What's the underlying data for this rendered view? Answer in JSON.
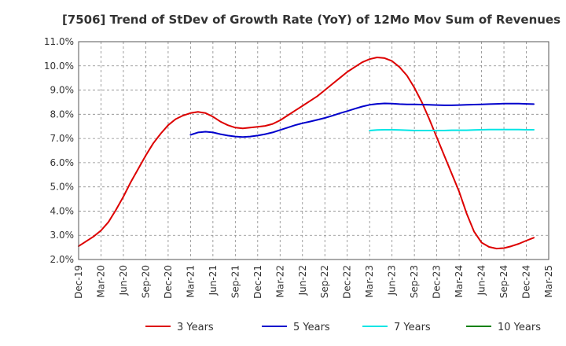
{
  "chart_data": {
    "type": "line",
    "title": "[7506]  Trend of StDev of Growth Rate (YoY) of 12Mo Mov Sum of Revenues",
    "xlabel": "",
    "ylabel": "",
    "ylim": [
      2.0,
      11.0
    ],
    "y_ticks": [
      2.0,
      3.0,
      4.0,
      5.0,
      6.0,
      7.0,
      8.0,
      9.0,
      10.0,
      11.0
    ],
    "y_tick_labels": [
      "2.0%",
      "3.0%",
      "4.0%",
      "5.0%",
      "6.0%",
      "7.0%",
      "8.0%",
      "9.0%",
      "10.0%",
      "11.0%"
    ],
    "x_tick_labels": [
      "Dec-19",
      "Mar-20",
      "Jun-20",
      "Sep-20",
      "Dec-20",
      "Mar-21",
      "Jun-21",
      "Sep-21",
      "Dec-21",
      "Mar-22",
      "Jun-22",
      "Sep-22",
      "Dec-22",
      "Mar-23",
      "Jun-23",
      "Sep-23",
      "Dec-23",
      "Mar-24",
      "Jun-24",
      "Sep-24",
      "Dec-24",
      "Mar-25"
    ],
    "x_unit": "months since Dec-19",
    "xlim": [
      0,
      63
    ],
    "grid": true,
    "legend_position": "bottom",
    "series": [
      {
        "name": "3 Years",
        "color": "#dd0000",
        "points": [
          [
            0,
            2.55
          ],
          [
            1,
            2.75
          ],
          [
            2,
            2.95
          ],
          [
            3,
            3.2
          ],
          [
            4,
            3.55
          ],
          [
            5,
            4.05
          ],
          [
            6,
            4.6
          ],
          [
            7,
            5.2
          ],
          [
            8,
            5.75
          ],
          [
            9,
            6.3
          ],
          [
            10,
            6.8
          ],
          [
            11,
            7.2
          ],
          [
            12,
            7.55
          ],
          [
            13,
            7.8
          ],
          [
            14,
            7.95
          ],
          [
            15,
            8.05
          ],
          [
            16,
            8.1
          ],
          [
            17,
            8.05
          ],
          [
            18,
            7.9
          ],
          [
            19,
            7.7
          ],
          [
            20,
            7.55
          ],
          [
            21,
            7.45
          ],
          [
            22,
            7.42
          ],
          [
            23,
            7.45
          ],
          [
            24,
            7.48
          ],
          [
            25,
            7.52
          ],
          [
            26,
            7.6
          ],
          [
            27,
            7.75
          ],
          [
            28,
            7.95
          ],
          [
            29,
            8.15
          ],
          [
            30,
            8.35
          ],
          [
            31,
            8.55
          ],
          [
            32,
            8.75
          ],
          [
            33,
            9.0
          ],
          [
            34,
            9.25
          ],
          [
            35,
            9.5
          ],
          [
            36,
            9.75
          ],
          [
            37,
            9.95
          ],
          [
            38,
            10.15
          ],
          [
            39,
            10.28
          ],
          [
            40,
            10.35
          ],
          [
            41,
            10.32
          ],
          [
            42,
            10.2
          ],
          [
            43,
            9.95
          ],
          [
            44,
            9.6
          ],
          [
            45,
            9.1
          ],
          [
            46,
            8.5
          ],
          [
            47,
            7.8
          ],
          [
            48,
            7.05
          ],
          [
            49,
            6.3
          ],
          [
            50,
            5.55
          ],
          [
            51,
            4.8
          ],
          [
            52,
            3.9
          ],
          [
            53,
            3.15
          ],
          [
            54,
            2.7
          ],
          [
            55,
            2.52
          ],
          [
            56,
            2.45
          ],
          [
            57,
            2.47
          ],
          [
            58,
            2.55
          ],
          [
            59,
            2.65
          ],
          [
            60,
            2.78
          ],
          [
            61,
            2.9
          ]
        ]
      },
      {
        "name": "5 Years",
        "color": "#0000cc",
        "points": [
          [
            15,
            7.15
          ],
          [
            16,
            7.25
          ],
          [
            17,
            7.28
          ],
          [
            18,
            7.25
          ],
          [
            19,
            7.18
          ],
          [
            20,
            7.12
          ],
          [
            21,
            7.08
          ],
          [
            22,
            7.06
          ],
          [
            23,
            7.08
          ],
          [
            24,
            7.12
          ],
          [
            25,
            7.18
          ],
          [
            26,
            7.25
          ],
          [
            27,
            7.35
          ],
          [
            28,
            7.45
          ],
          [
            29,
            7.55
          ],
          [
            30,
            7.63
          ],
          [
            31,
            7.7
          ],
          [
            32,
            7.77
          ],
          [
            33,
            7.85
          ],
          [
            34,
            7.94
          ],
          [
            35,
            8.04
          ],
          [
            36,
            8.13
          ],
          [
            37,
            8.23
          ],
          [
            38,
            8.32
          ],
          [
            39,
            8.39
          ],
          [
            40,
            8.43
          ],
          [
            41,
            8.45
          ],
          [
            42,
            8.44
          ],
          [
            43,
            8.42
          ],
          [
            44,
            8.41
          ],
          [
            45,
            8.41
          ],
          [
            46,
            8.4
          ],
          [
            47,
            8.39
          ],
          [
            48,
            8.38
          ],
          [
            49,
            8.37
          ],
          [
            50,
            8.37
          ],
          [
            51,
            8.38
          ],
          [
            52,
            8.39
          ],
          [
            53,
            8.4
          ],
          [
            54,
            8.41
          ],
          [
            55,
            8.42
          ],
          [
            56,
            8.43
          ],
          [
            57,
            8.44
          ],
          [
            58,
            8.44
          ],
          [
            59,
            8.44
          ],
          [
            60,
            8.43
          ],
          [
            61,
            8.42
          ]
        ]
      },
      {
        "name": "7 Years",
        "color": "#00e5e5",
        "points": [
          [
            39,
            7.33
          ],
          [
            40,
            7.35
          ],
          [
            41,
            7.36
          ],
          [
            42,
            7.36
          ],
          [
            43,
            7.35
          ],
          [
            44,
            7.34
          ],
          [
            45,
            7.33
          ],
          [
            46,
            7.33
          ],
          [
            47,
            7.33
          ],
          [
            48,
            7.33
          ],
          [
            49,
            7.33
          ],
          [
            50,
            7.34
          ],
          [
            51,
            7.34
          ],
          [
            52,
            7.34
          ],
          [
            53,
            7.35
          ],
          [
            54,
            7.36
          ],
          [
            55,
            7.37
          ],
          [
            56,
            7.37
          ],
          [
            57,
            7.37
          ],
          [
            58,
            7.37
          ],
          [
            59,
            7.37
          ],
          [
            60,
            7.36
          ],
          [
            61,
            7.36
          ]
        ]
      },
      {
        "name": "10 Years",
        "color": "#008000",
        "points": []
      }
    ]
  }
}
